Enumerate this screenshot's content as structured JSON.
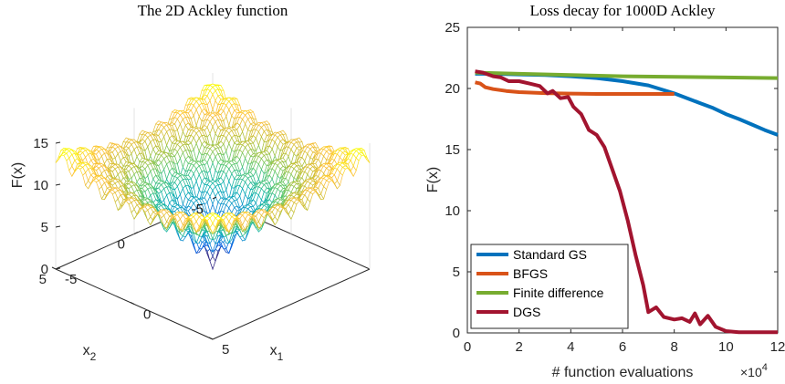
{
  "chart_data": [
    {
      "type": "surface",
      "title": "The 2D Ackley function",
      "xlabel": "x",
      "xlabel_sub": "1",
      "ylabel": "x",
      "ylabel_sub": "2",
      "zlabel": "F(x)",
      "xlim": [
        -5,
        5
      ],
      "ylim": [
        -5,
        5
      ],
      "zlim": [
        0,
        15
      ],
      "xticks": [
        "-5",
        "0",
        "5"
      ],
      "yticks": [
        "-5",
        "0",
        "5"
      ],
      "zticks": [
        "0",
        "5",
        "10",
        "15"
      ],
      "function": "Ackley (2D)",
      "grid": true,
      "colormap": "parula"
    },
    {
      "type": "line",
      "title": "Loss decay for 1000D Ackley",
      "xlabel": "# function evaluations",
      "x_exponent_label": "×10",
      "x_exponent": "4",
      "ylabel": "F(x)",
      "xlim": [
        0,
        12
      ],
      "ylim": [
        0,
        25
      ],
      "xticks": [
        "0",
        "2",
        "4",
        "6",
        "8",
        "10",
        "12"
      ],
      "yticks": [
        "0",
        "5",
        "10",
        "15",
        "20",
        "25"
      ],
      "grid": false,
      "legend_position": "bottom-left",
      "series": [
        {
          "name": "Standard GS",
          "color": "#0072BD",
          "x": [
            0.3,
            1,
            2,
            3,
            4,
            5,
            6,
            7,
            8,
            8.5,
            9,
            9.5,
            10,
            10.5,
            11,
            11.5,
            12
          ],
          "y": [
            21.2,
            21.2,
            21.15,
            21.1,
            21.0,
            20.85,
            20.6,
            20.25,
            19.6,
            19.2,
            18.8,
            18.4,
            17.9,
            17.5,
            17.05,
            16.6,
            16.2
          ]
        },
        {
          "name": "BFGS",
          "color": "#D95319",
          "x": [
            0.3,
            0.5,
            0.7,
            1.0,
            1.5,
            2,
            3,
            4,
            5,
            6,
            7,
            8
          ],
          "y": [
            20.5,
            20.4,
            20.1,
            19.95,
            19.8,
            19.7,
            19.62,
            19.58,
            19.55,
            19.55,
            19.55,
            19.55
          ]
        },
        {
          "name": "Finite difference",
          "color": "#77AC30",
          "x": [
            0.3,
            2,
            4,
            6,
            8,
            10,
            12
          ],
          "y": [
            21.3,
            21.2,
            21.1,
            21.0,
            20.95,
            20.9,
            20.85
          ]
        },
        {
          "name": "DGS",
          "color": "#A2142F",
          "x": [
            0.3,
            0.6,
            1.0,
            1.3,
            1.6,
            2.0,
            2.4,
            2.8,
            3.1,
            3.3,
            3.6,
            3.9,
            4.1,
            4.4,
            4.7,
            5.0,
            5.3,
            5.6,
            5.9,
            6.2,
            6.5,
            6.8,
            7.0,
            7.3,
            7.6,
            8.0,
            8.3,
            8.6,
            8.8,
            9.0,
            9.3,
            9.6,
            10.0,
            10.5,
            11.0,
            11.5,
            12.0
          ],
          "y": [
            21.4,
            21.3,
            21.0,
            20.9,
            20.6,
            20.6,
            20.4,
            20.2,
            19.6,
            19.8,
            19.2,
            19.3,
            18.5,
            17.9,
            16.6,
            16.2,
            15.2,
            13.4,
            11.6,
            9.2,
            6.4,
            3.9,
            1.7,
            2.1,
            1.3,
            1.1,
            1.2,
            0.9,
            1.6,
            0.7,
            1.4,
            0.5,
            0.15,
            0.05,
            0.05,
            0.05,
            0.05
          ]
        }
      ]
    }
  ]
}
